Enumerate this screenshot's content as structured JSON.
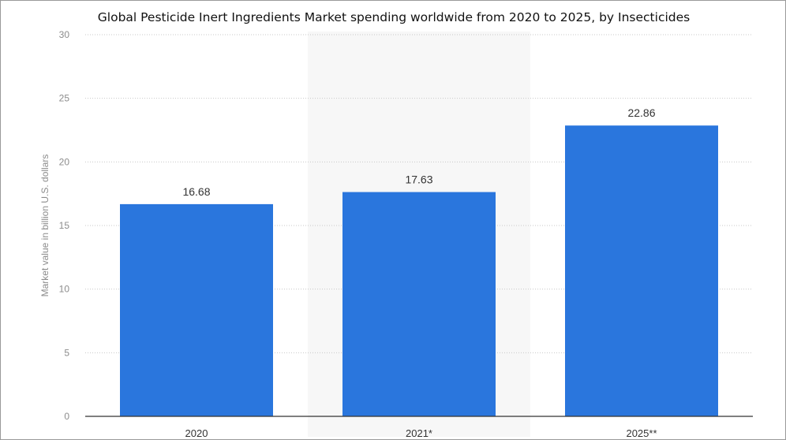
{
  "chart_data": {
    "type": "bar",
    "title": "Global Pesticide Inert Ingredients Market spending worldwide from 2020 to 2025, by Insecticides",
    "categories": [
      "2020",
      "2021*",
      "2025**"
    ],
    "values": [
      16.68,
      17.63,
      22.86
    ],
    "value_labels": [
      "16.68",
      "17.63",
      "22.86"
    ],
    "xlabel": "",
    "ylabel": "Market value in billion U.S. dollars",
    "ylim": [
      0,
      30
    ],
    "yticks": [
      0,
      5,
      10,
      15,
      20,
      25,
      30
    ],
    "grid": true,
    "bar_color": "#2a76dd",
    "highlight_band_color": "#f7f7f7"
  }
}
